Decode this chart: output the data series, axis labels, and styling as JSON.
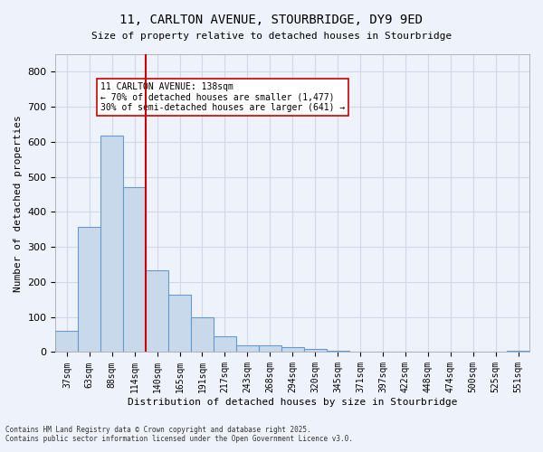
{
  "title_line1": "11, CARLTON AVENUE, STOURBRIDGE, DY9 9ED",
  "title_line2": "Size of property relative to detached houses in Stourbridge",
  "xlabel": "Distribution of detached houses by size in Stourbridge",
  "ylabel": "Number of detached properties",
  "bin_labels": [
    "37sqm",
    "63sqm",
    "88sqm",
    "114sqm",
    "140sqm",
    "165sqm",
    "191sqm",
    "217sqm",
    "243sqm",
    "268sqm",
    "294sqm",
    "320sqm",
    "345sqm",
    "371sqm",
    "397sqm",
    "422sqm",
    "448sqm",
    "474sqm",
    "500sqm",
    "525sqm",
    "551sqm"
  ],
  "bar_values": [
    60,
    358,
    617,
    472,
    234,
    163,
    98,
    46,
    20,
    18,
    13,
    10,
    4,
    2,
    2,
    1,
    1,
    0,
    0,
    0,
    5
  ],
  "bar_color": "#c9d9ec",
  "bar_edgecolor": "#6699cc",
  "grid_color": "#d0d8e8",
  "background_color": "#eef2fa",
  "vline_x_index": 4,
  "vline_color": "#cc0000",
  "annotation_text": "11 CARLTON AVENUE: 138sqm\n← 70% of detached houses are smaller (1,477)\n30% of semi-detached houses are larger (641) →",
  "annotation_box_color": "#ffffff",
  "annotation_box_edgecolor": "#cc0000",
  "ylim": [
    0,
    850
  ],
  "yticks": [
    0,
    100,
    200,
    300,
    400,
    500,
    600,
    700,
    800
  ],
  "footnote": "Contains HM Land Registry data © Crown copyright and database right 2025.\nContains public sector information licensed under the Open Government Licence v3.0."
}
